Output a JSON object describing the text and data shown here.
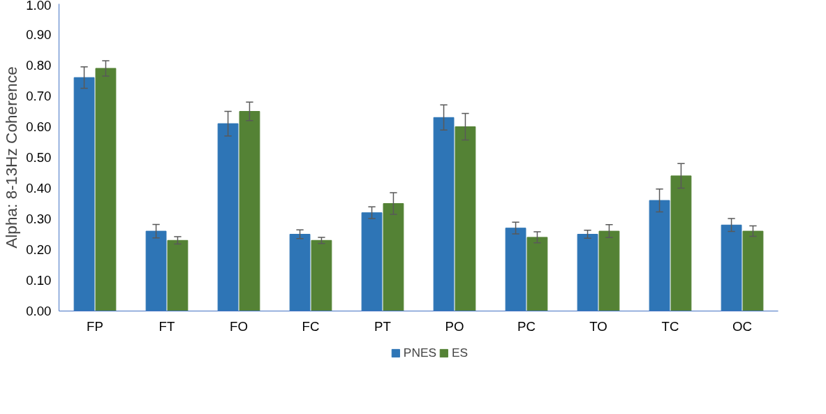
{
  "chart_data": {
    "type": "bar",
    "ylabel": "Alpha: 8-13Hz Coherence",
    "categories": [
      "FP",
      "FT",
      "FO",
      "FC",
      "PT",
      "PO",
      "PC",
      "TO",
      "TC",
      "OC"
    ],
    "series": [
      {
        "name": "PNES",
        "color": "#2e75b6",
        "values": [
          0.76,
          0.26,
          0.61,
          0.25,
          0.32,
          0.63,
          0.27,
          0.25,
          0.36,
          0.28
        ],
        "errors": [
          0.035,
          0.022,
          0.04,
          0.014,
          0.019,
          0.041,
          0.019,
          0.013,
          0.037,
          0.021
        ]
      },
      {
        "name": "ES",
        "color": "#548235",
        "values": [
          0.79,
          0.23,
          0.65,
          0.23,
          0.35,
          0.6,
          0.24,
          0.26,
          0.44,
          0.26
        ],
        "errors": [
          0.025,
          0.012,
          0.03,
          0.01,
          0.035,
          0.043,
          0.018,
          0.021,
          0.04,
          0.017
        ]
      }
    ],
    "ylim": [
      0,
      1
    ],
    "yticks": [
      {
        "value": 0,
        "label": "0.00"
      },
      {
        "value": 0.1,
        "label": "0.10"
      },
      {
        "value": 0.2,
        "label": "0.20"
      },
      {
        "value": 0.3,
        "label": "0.30"
      },
      {
        "value": 0.4,
        "label": "0.40"
      },
      {
        "value": 0.5,
        "label": "0.50"
      },
      {
        "value": 0.6,
        "label": "0.60"
      },
      {
        "value": 0.7,
        "label": "0.70"
      },
      {
        "value": 0.8,
        "label": "0.80"
      },
      {
        "value": 0.9,
        "label": "0.90"
      },
      {
        "value": 1.0,
        "label": "1.00"
      }
    ],
    "grid": false,
    "legend": "bottom"
  }
}
